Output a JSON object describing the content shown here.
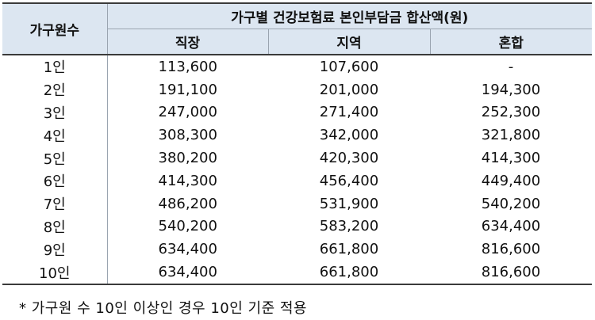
{
  "table": {
    "row_header": "가구원수",
    "group_header": "가구별 건강보험료 본인부담금 합산액(원)",
    "columns": [
      "직장",
      "지역",
      "혼합"
    ],
    "rows": [
      {
        "label": "1인",
        "values": [
          "113,600",
          "107,600",
          "-"
        ]
      },
      {
        "label": "2인",
        "values": [
          "191,100",
          "201,000",
          "194,300"
        ]
      },
      {
        "label": "3인",
        "values": [
          "247,000",
          "271,400",
          "252,300"
        ]
      },
      {
        "label": "4인",
        "values": [
          "308,300",
          "342,000",
          "321,800"
        ]
      },
      {
        "label": "5인",
        "values": [
          "380,200",
          "420,300",
          "414,300"
        ]
      },
      {
        "label": "6인",
        "values": [
          "414,300",
          "456,400",
          "449,400"
        ]
      },
      {
        "label": "7인",
        "values": [
          "486,200",
          "531,900",
          "540,200"
        ]
      },
      {
        "label": "8인",
        "values": [
          "540,200",
          "583,200",
          "634,400"
        ]
      },
      {
        "label": "9인",
        "values": [
          "634,400",
          "661,800",
          "816,600"
        ]
      },
      {
        "label": "10인",
        "values": [
          "634,400",
          "661,800",
          "816,600"
        ]
      }
    ]
  },
  "footnote": "* 가구원 수 10인 이상인 경우 10인 기준 적용",
  "colors": {
    "header_bg": "#dce6f1",
    "rule": "#3a3a3a",
    "grid": "#9aa4b0"
  }
}
